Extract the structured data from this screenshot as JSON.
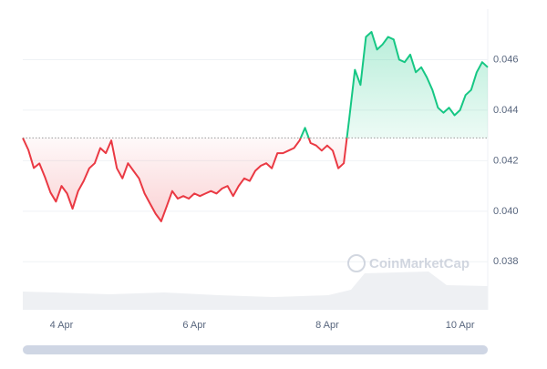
{
  "chart_data": {
    "type": "line",
    "watermark": "CoinMarketCap",
    "categories": [
      null,
      null,
      null,
      null,
      null,
      null,
      null,
      "4 Apr",
      null,
      null,
      null,
      null,
      null,
      null,
      null,
      null,
      null,
      null,
      null,
      null,
      null,
      null,
      null,
      null,
      null,
      null,
      null,
      null,
      null,
      null,
      null,
      "6 Apr",
      null,
      null,
      null,
      null,
      null,
      null,
      null,
      null,
      null,
      null,
      null,
      null,
      null,
      null,
      null,
      null,
      null,
      null,
      null,
      null,
      null,
      null,
      null,
      "8 Apr",
      null,
      null,
      null,
      null,
      null,
      null,
      null,
      null,
      null,
      null,
      null,
      null,
      null,
      null,
      null,
      null,
      null,
      null,
      null,
      null,
      null,
      null,
      null,
      "10 Apr",
      null,
      null,
      null,
      null,
      null
    ],
    "values": [
      0.0429,
      0.04243,
      0.04171,
      0.04189,
      0.04135,
      0.04074,
      0.04038,
      0.041,
      0.0407,
      0.0401,
      0.0408,
      0.0412,
      0.0417,
      0.0419,
      0.0425,
      0.0423,
      0.0428,
      0.0417,
      0.0413,
      0.0419,
      0.0416,
      0.0413,
      0.0407,
      0.0403,
      0.0399,
      0.0396,
      0.0402,
      0.0408,
      0.0405,
      0.0406,
      0.0405,
      0.0407,
      0.0406,
      0.0407,
      0.0408,
      0.0407,
      0.0409,
      0.041,
      0.0406,
      0.041,
      0.0413,
      0.0412,
      0.0416,
      0.0418,
      0.0419,
      0.0417,
      0.0423,
      0.0423,
      0.0424,
      0.0425,
      0.0428,
      0.0433,
      0.0427,
      0.0426,
      0.0424,
      0.0426,
      0.0424,
      0.0417,
      0.0419,
      0.0437,
      0.0456,
      0.045,
      0.0469,
      0.0471,
      0.0464,
      0.0466,
      0.0469,
      0.0468,
      0.046,
      0.0459,
      0.0462,
      0.0455,
      0.0457,
      0.0453,
      0.0448,
      0.0441,
      0.0439,
      0.0441,
      0.0438,
      0.044,
      0.0446,
      0.0448,
      0.0455,
      0.0459,
      0.0457
    ],
    "baseline": 0.0429,
    "up_color": "#16c784",
    "down_color": "#ea3943",
    "ylim": [
      0.0361,
      0.048
    ],
    "yticks": [
      0.038,
      {
        "value": 0.04,
        "label": "0.040"
      },
      0.042,
      0.044,
      0.046
    ],
    "grid": true
  }
}
